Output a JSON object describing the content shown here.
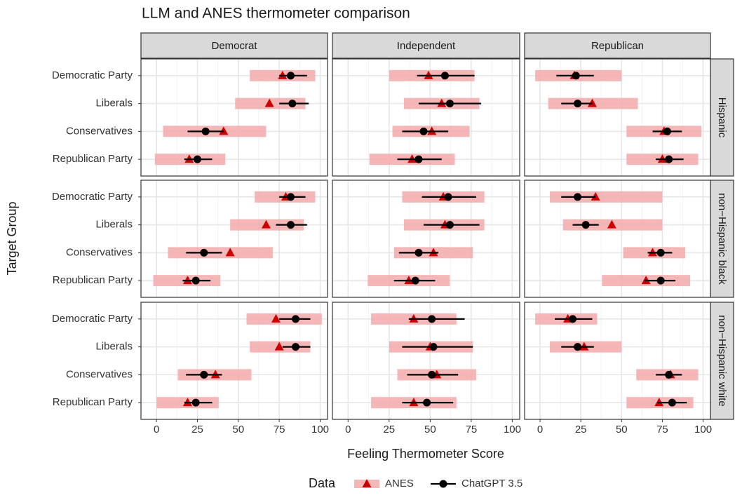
{
  "chart_data": {
    "type": "range-dot",
    "title": "LLM and ANES thermometer comparison",
    "x_label": "Feeling Thermometer Score",
    "y_label": "Target Group",
    "categories": [
      "Democratic Party",
      "Liberals",
      "Conservatives",
      "Republican Party"
    ],
    "columns": [
      "Democrat",
      "Independent",
      "Republican"
    ],
    "xlim": [
      -9.5,
      104.5
    ],
    "xticks": [
      0,
      25,
      50,
      75,
      100
    ],
    "grid": true,
    "legend": {
      "title": "Data",
      "position": "bottom"
    },
    "series": [
      {
        "name": "ANES",
        "color": "#cc0000",
        "band_color": "#f2a9a9"
      },
      {
        "name": "ChatGPT 3.5",
        "color": "#000000"
      }
    ],
    "rows": [
      {
        "name": "Hispanic",
        "panels": [
          {
            "series": [
              {
                "values": [
                  77,
                  69,
                  41,
                  20
                ],
                "low": [
                  57,
                  48,
                  4,
                  -1
                ],
                "high": [
                  97,
                  91,
                  67,
                  42
                ]
              },
              {
                "values": [
                  82,
                  83,
                  30,
                  25
                ],
                "low": [
                  75,
                  75,
                  19,
                  17
                ],
                "high": [
                  92,
                  93,
                  41,
                  34
                ]
              }
            ]
          },
          {
            "series": [
              {
                "values": [
                  49,
                  57,
                  51,
                  39
                ],
                "low": [
                  25,
                  34,
                  27,
                  13
                ],
                "high": [
                  77,
                  80,
                  74,
                  65
                ]
              },
              {
                "values": [
                  59,
                  62,
                  46,
                  43
                ],
                "low": [
                  42,
                  43,
                  33,
                  30
                ],
                "high": [
                  77,
                  81,
                  61,
                  57
                ]
              }
            ]
          },
          {
            "series": [
              {
                "values": [
                  21,
                  32,
                  76,
                  75
                ],
                "low": [
                  -3,
                  5,
                  53,
                  53
                ],
                "high": [
                  50,
                  60,
                  99,
                  97
                ]
              },
              {
                "values": [
                  22,
                  23,
                  78,
                  79
                ],
                "low": [
                  10,
                  13,
                  69,
                  71
                ],
                "high": [
                  33,
                  32,
                  87,
                  88
                ]
              }
            ]
          }
        ]
      },
      {
        "name": "non−Hispanic black",
        "panels": [
          {
            "series": [
              {
                "values": [
                  79,
                  67,
                  45,
                  19
                ],
                "low": [
                  60,
                  45,
                  7,
                  -2
                ],
                "high": [
                  97,
                  90,
                  71,
                  39
                ]
              },
              {
                "values": [
                  82,
                  82,
                  29,
                  24
                ],
                "low": [
                  75,
                  73,
                  18,
                  16
                ],
                "high": [
                  91,
                  92,
                  40,
                  33
                ]
              }
            ]
          },
          {
            "series": [
              {
                "values": [
                  58,
                  59,
                  52,
                  37
                ],
                "low": [
                  33,
                  34,
                  28,
                  12
                ],
                "high": [
                  83,
                  83,
                  76,
                  62
                ]
              },
              {
                "values": [
                  61,
                  62,
                  43,
                  41
                ],
                "low": [
                  45,
                  46,
                  31,
                  28
                ],
                "high": [
                  78,
                  80,
                  55,
                  53
                ]
              }
            ]
          },
          {
            "series": [
              {
                "values": [
                  34,
                  44,
                  69,
                  65
                ],
                "low": [
                  6,
                  14,
                  51,
                  38
                ],
                "high": [
                  75,
                  75,
                  89,
                  92
                ]
              },
              {
                "values": [
                  23,
                  28,
                  74,
                  74
                ],
                "low": [
                  13,
                  20,
                  66,
                  64
                ],
                "high": [
                  34,
                  36,
                  81,
                  83
                ]
              }
            ]
          }
        ]
      },
      {
        "name": "non−Hispanic white",
        "panels": [
          {
            "series": [
              {
                "values": [
                  73,
                  75,
                  36,
                  19
                ],
                "low": [
                  55,
                  57,
                  13,
                  0
                ],
                "high": [
                  101,
                  94,
                  58,
                  38
                ]
              },
              {
                "values": [
                  85,
                  85,
                  29,
                  24
                ],
                "low": [
                  75,
                  77,
                  18,
                  17
                ],
                "high": [
                  94,
                  94,
                  40,
                  34
                ]
              }
            ]
          },
          {
            "series": [
              {
                "values": [
                  40,
                  50,
                  54,
                  40
                ],
                "low": [
                  14,
                  25,
                  30,
                  14
                ],
                "high": [
                  66,
                  76,
                  78,
                  66
                ]
              },
              {
                "values": [
                  51,
                  52,
                  51,
                  48
                ],
                "low": [
                  37,
                  33,
                  36,
                  33
                ],
                "high": [
                  71,
                  76,
                  67,
                  64
                ]
              }
            ]
          },
          {
            "series": [
              {
                "values": [
                  17,
                  27,
                  80,
                  73
                ],
                "low": [
                  -3,
                  6,
                  59,
                  53
                ],
                "high": [
                  35,
                  50,
                  97,
                  94
                ]
              },
              {
                "values": [
                  20,
                  23,
                  79,
                  81
                ],
                "low": [
                  9,
                  13,
                  71,
                  72
                ],
                "high": [
                  32,
                  33,
                  87,
                  90
                ]
              }
            ]
          }
        ]
      }
    ]
  }
}
